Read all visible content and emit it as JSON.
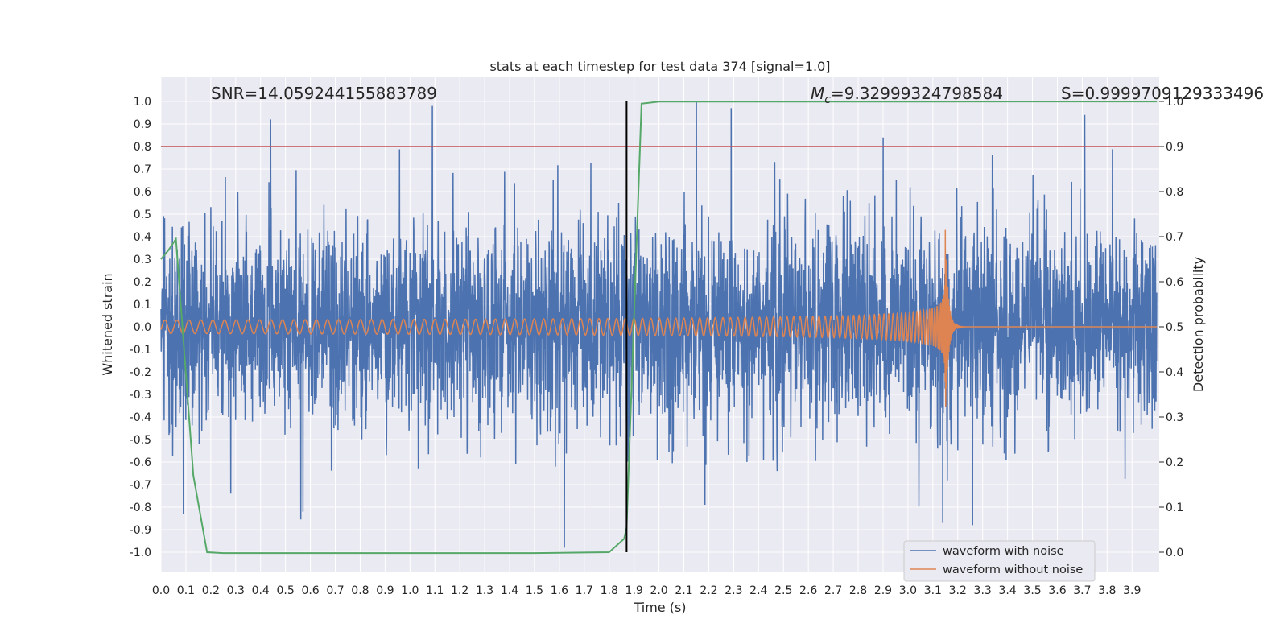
{
  "chart_data": {
    "type": "line",
    "title": "stats at each timestep for test data 374 [signal=1.0]",
    "xlabel": "Time (s)",
    "ylabel": "Whitened strain",
    "ylabel_right": "Detection probability",
    "xlim": [
      0.0,
      4.0
    ],
    "ylim": [
      -1.1,
      1.1
    ],
    "ylim_right": [
      -0.05,
      1.0
    ],
    "x_ticks": [
      "0.0",
      "0.1",
      "0.2",
      "0.3",
      "0.4",
      "0.5",
      "0.6",
      "0.7",
      "0.8",
      "0.9",
      "1.0",
      "1.1",
      "1.2",
      "1.3",
      "1.4",
      "1.5",
      "1.6",
      "1.7",
      "1.8",
      "1.9",
      "2.0",
      "2.1",
      "2.2",
      "2.3",
      "2.4",
      "2.5",
      "2.6",
      "2.7",
      "2.8",
      "2.9",
      "3.0",
      "3.1",
      "3.2",
      "3.3",
      "3.4",
      "3.5",
      "3.6",
      "3.7",
      "3.8",
      "3.9"
    ],
    "y_ticks": [
      "1.0",
      "0.9",
      "0.8",
      "0.7",
      "0.6",
      "0.5",
      "0.4",
      "0.3",
      "0.2",
      "0.1",
      "0.0",
      "-0.1",
      "-0.2",
      "-0.3",
      "-0.4",
      "-0.5",
      "-0.6",
      "-0.7",
      "-0.8",
      "-0.9",
      "-1.0"
    ],
    "y_ticks_right": [
      "1.0",
      "0.9",
      "0.8",
      "0.7",
      "0.6",
      "0.5",
      "0.4",
      "0.3",
      "0.2",
      "0.1",
      "0.0"
    ],
    "annotations": {
      "snr": "SNR=14.059244155883789",
      "mc_symbol": "M",
      "mc_sub": "c",
      "mc_value": "=9.32999324798584",
      "s": "S=0.9999709129333496"
    },
    "threshold": {
      "value": 0.9,
      "axis": "right",
      "color": "#c44e52"
    },
    "vline": {
      "x": 1.87,
      "color": "#000000"
    },
    "series": [
      {
        "name": "waveform with noise",
        "color": "#4c72b0",
        "kind": "noise",
        "amplitude_std": 0.22,
        "peaks": [
          {
            "x": 0.44,
            "y": 0.92
          },
          {
            "x": 1.09,
            "y": 0.98
          },
          {
            "x": 2.15,
            "y": 1.0
          },
          {
            "x": 2.29,
            "y": 0.97
          },
          {
            "x": 3.71,
            "y": 0.94
          },
          {
            "x": 1.62,
            "y": -0.98
          },
          {
            "x": 0.09,
            "y": -0.83
          },
          {
            "x": 3.26,
            "y": -0.88
          },
          {
            "x": 3.14,
            "y": -0.87
          },
          {
            "x": 2.9,
            "y": 0.84
          },
          {
            "x": 0.28,
            "y": -0.74
          },
          {
            "x": 0.57,
            "y": -0.82
          }
        ]
      },
      {
        "name": "waveform without noise",
        "color": "#dd8452",
        "kind": "chirp",
        "start_amplitude": 0.03,
        "peak_amplitude": 0.43,
        "merger_time": 3.15,
        "start_frequency": 20.5
      },
      {
        "name": "detection probability",
        "color": "#55a868",
        "axis": "right",
        "x": [
          0.0,
          0.03,
          0.06,
          0.13,
          0.185,
          0.25,
          1.0,
          1.5,
          1.8,
          1.86,
          1.87,
          1.93,
          2.0,
          4.0
        ],
        "y": [
          0.65,
          0.67,
          0.695,
          0.17,
          0.0,
          -0.002,
          -0.002,
          -0.002,
          0.0,
          0.03,
          0.055,
          0.995,
          0.9995,
          0.9999
        ]
      }
    ],
    "legend": {
      "position": "lower-right",
      "items": [
        "waveform with noise",
        "waveform without noise"
      ]
    }
  }
}
